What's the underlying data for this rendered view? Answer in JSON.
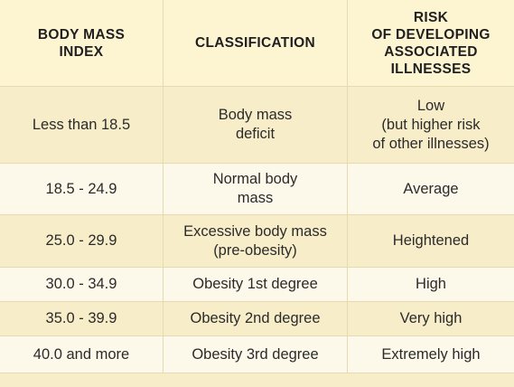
{
  "table": {
    "headers": [
      "BODY MASS\nINDEX",
      "CLASSIFICATION",
      "RISK\nOF DEVELOPING\nASSOCIATED\nILLNESSES"
    ],
    "rows": [
      {
        "bmi": "Less than 18.5",
        "classification": "Body mass\ndeficit",
        "risk": "Low\n(but higher risk\nof other illnesses)"
      },
      {
        "bmi": "18.5 - 24.9",
        "classification": "Normal body\nmass",
        "risk": "Average"
      },
      {
        "bmi": "25.0 - 29.9",
        "classification": "Excessive body mass\n(pre-obesity)",
        "risk": "Heightened"
      },
      {
        "bmi": "30.0 - 34.9",
        "classification": "Obesity 1st degree",
        "risk": "High"
      },
      {
        "bmi": "35.0 - 39.9",
        "classification": "Obesity 2nd degree",
        "risk": "Very high"
      },
      {
        "bmi": "40.0 and more",
        "classification": "Obesity 3rd degree",
        "risk": "Extremely high"
      }
    ]
  },
  "colors": {
    "header_bg": "#fdf4d2",
    "band_bg": "#f8edc9",
    "plain_bg": "#fcf8ea",
    "grid_line": "#e7d9b0",
    "text": "#2b2b2b"
  }
}
